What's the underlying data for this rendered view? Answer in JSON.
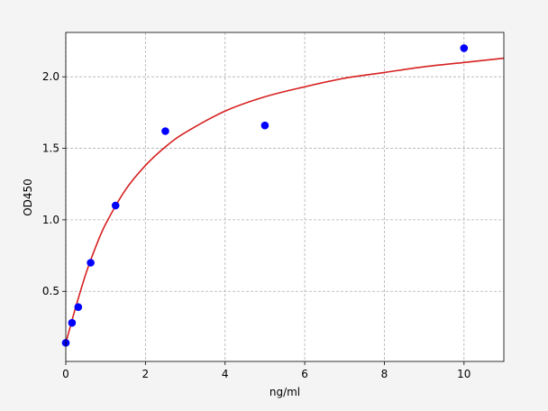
{
  "chart_data": {
    "type": "scatter",
    "title": "",
    "xlabel": "ng/ml",
    "ylabel": "OD450",
    "xlim": [
      0,
      11
    ],
    "ylim": [
      0.01,
      2.31
    ],
    "xticks": [
      "0",
      "2",
      "4",
      "6",
      "8",
      "10"
    ],
    "xtick_values": [
      0,
      2,
      4,
      6,
      8,
      10
    ],
    "yticks": [
      "0.5",
      "1.0",
      "1.5",
      "2.0"
    ],
    "ytick_values": [
      0.5,
      1.0,
      1.5,
      2.0
    ],
    "grid": true,
    "series": [
      {
        "kind": "points",
        "color": "#0000ff",
        "x": [
          0,
          0.156,
          0.3125,
          0.625,
          1.25,
          2.5,
          5,
          10
        ],
        "y": [
          0.14,
          0.28,
          0.39,
          0.7,
          1.1,
          1.62,
          1.66,
          2.2
        ]
      },
      {
        "kind": "fit-curve",
        "color": "#d62020",
        "x": [
          0,
          0.1,
          0.25,
          0.5,
          0.75,
          1,
          1.5,
          2,
          2.5,
          3,
          4,
          5,
          6,
          7,
          8,
          9,
          10,
          11
        ],
        "y": [
          0.14,
          0.24,
          0.39,
          0.62,
          0.81,
          0.97,
          1.21,
          1.38,
          1.51,
          1.61,
          1.76,
          1.86,
          1.93,
          1.99,
          2.03,
          2.07,
          2.1,
          2.13
        ]
      }
    ]
  }
}
